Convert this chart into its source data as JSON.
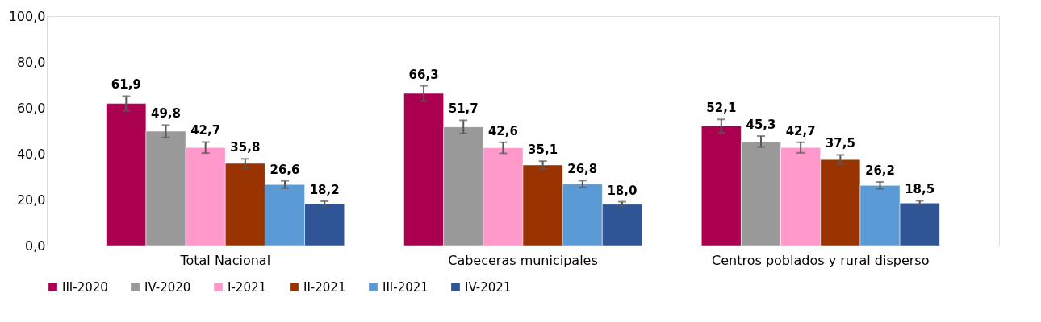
{
  "chart_data": {
    "type": "bar",
    "categories": [
      "Total Nacional",
      "Cabeceras municipales",
      "Centros poblados y rural disperso"
    ],
    "series": [
      {
        "name": "III-2020",
        "color": "#ab0050",
        "values": [
          61.9,
          66.3,
          52.1
        ],
        "errors": [
          3.2,
          3.3,
          2.9
        ],
        "value_labels": [
          "61,9",
          "66,3",
          "52,1"
        ]
      },
      {
        "name": "IV-2020",
        "color": "#999999",
        "values": [
          49.8,
          51.7,
          45.3
        ],
        "errors": [
          2.7,
          2.9,
          2.4
        ],
        "value_labels": [
          "49,8",
          "51,7",
          "45,3"
        ]
      },
      {
        "name": "I-2021",
        "color": "#ff99cc",
        "values": [
          42.7,
          42.6,
          42.7
        ],
        "errors": [
          2.4,
          2.4,
          2.3
        ],
        "value_labels": [
          "42,7",
          "42,6",
          "42,7"
        ]
      },
      {
        "name": "II-2021",
        "color": "#993300",
        "values": [
          35.8,
          35.1,
          37.5
        ],
        "errors": [
          2.0,
          1.7,
          2.0
        ],
        "value_labels": [
          "35,8",
          "35,1",
          "37,5"
        ]
      },
      {
        "name": "III-2021",
        "color": "#5b9bd5",
        "values": [
          26.6,
          26.8,
          26.2
        ],
        "errors": [
          1.6,
          1.5,
          1.5
        ],
        "value_labels": [
          "26,6",
          "26,8",
          "26,2"
        ]
      },
      {
        "name": "IV-2021",
        "color": "#2f5597",
        "values": [
          18.2,
          18.0,
          18.5
        ],
        "errors": [
          1.1,
          1.1,
          1.0
        ],
        "value_labels": [
          "18,2",
          "18,0",
          "18,5"
        ]
      }
    ],
    "ylim": [
      0,
      100
    ],
    "yticks": [
      {
        "value": 0,
        "label": "0,0"
      },
      {
        "value": 20,
        "label": "20,0"
      },
      {
        "value": 40,
        "label": "40,0"
      },
      {
        "value": 60,
        "label": "60,0"
      },
      {
        "value": 80,
        "label": "80,0"
      },
      {
        "value": 100,
        "label": "100,0"
      }
    ],
    "grid": false,
    "legend": "bottom"
  }
}
